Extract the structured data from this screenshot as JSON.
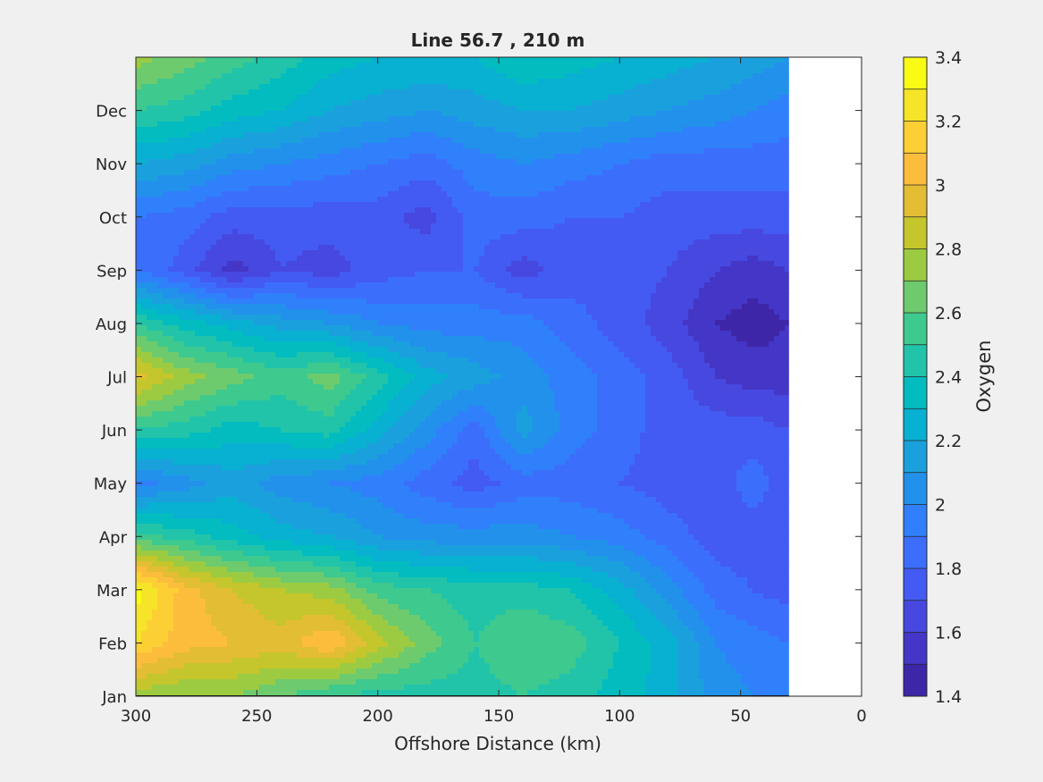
{
  "chart_data": {
    "type": "contourf",
    "title": "Line 56.7 , 210 m",
    "xlabel": "Offshore Distance (km)",
    "ylabel": "",
    "colorbar_label": "Oxygen",
    "x_direction": "reversed",
    "xlim": [
      300,
      0
    ],
    "ylim": [
      "Jan",
      "Dec+"
    ],
    "x_ticks": [
      "300",
      "250",
      "200",
      "150",
      "100",
      "50",
      "0"
    ],
    "y_ticks": [
      "Jan",
      "Feb",
      "Mar",
      "Apr",
      "May",
      "Jun",
      "Jul",
      "Aug",
      "Sep",
      "Oct",
      "Nov",
      "Dec"
    ],
    "data_extent_km": [
      300,
      30
    ],
    "colorbar": {
      "range": [
        1.4,
        3.4
      ],
      "step": 0.1,
      "tick_labels": [
        "1.4",
        "1.6",
        "1.8",
        "2",
        "2.2",
        "2.4",
        "2.6",
        "2.8",
        "3",
        "3.2",
        "3.4"
      ],
      "colors": [
        "#3e26a8",
        "#4436c6",
        "#4748e0",
        "#435bf3",
        "#3c6efc",
        "#2f80fa",
        "#2291eb",
        "#1aa1dd",
        "#08b0d1",
        "#03bcc0",
        "#21c4a9",
        "#3ec98f",
        "#6dcb6e",
        "#9ccb42",
        "#c4c62c",
        "#e3bd33",
        "#fcbd3d",
        "#fcd034",
        "#f5e427",
        "#f9fb15"
      ]
    },
    "series": [
      {
        "months": [
          "Jan",
          "Feb",
          "Mar",
          "Apr",
          "May",
          "Jun",
          "Jul",
          "Aug",
          "Sep",
          "Oct",
          "Nov",
          "Dec",
          "Dec+"
        ],
        "x": 300,
        "values": [
          2.75,
          3.2,
          3.35,
          2.55,
          1.95,
          2.5,
          2.95,
          2.5,
          1.9,
          1.9,
          2.2,
          2.5,
          2.75
        ]
      },
      {
        "months": [
          "Jan",
          "Feb",
          "Mar",
          "Apr",
          "May",
          "Jun",
          "Jul",
          "Aug",
          "Sep",
          "Oct",
          "Nov",
          "Dec",
          "Dec+"
        ],
        "x": 280,
        "values": [
          2.7,
          3.05,
          3.05,
          2.45,
          2.05,
          2.45,
          2.75,
          2.35,
          1.75,
          1.85,
          2.15,
          2.45,
          2.65
        ]
      },
      {
        "months": [
          "Jan",
          "Feb",
          "Mar",
          "Apr",
          "May",
          "Jun",
          "Jul",
          "Aug",
          "Sep",
          "Oct",
          "Nov",
          "Dec",
          "Dec+"
        ],
        "x": 260,
        "values": [
          2.7,
          3.0,
          2.9,
          2.35,
          2.15,
          2.35,
          2.65,
          2.25,
          1.55,
          1.75,
          2.05,
          2.35,
          2.55
        ]
      },
      {
        "months": [
          "Jan",
          "Feb",
          "Mar",
          "Apr",
          "May",
          "Jun",
          "Jul",
          "Aug",
          "Sep",
          "Oct",
          "Nov",
          "Dec",
          "Dec+"
        ],
        "x": 240,
        "values": [
          2.6,
          2.95,
          2.8,
          2.25,
          2.05,
          2.4,
          2.55,
          2.15,
          1.7,
          1.75,
          2.0,
          2.3,
          2.45
        ]
      },
      {
        "months": [
          "Jan",
          "Feb",
          "Mar",
          "Apr",
          "May",
          "Jun",
          "Jul",
          "Aug",
          "Sep",
          "Oct",
          "Nov",
          "Dec",
          "Dec+"
        ],
        "x": 220,
        "values": [
          2.5,
          3.1,
          2.75,
          2.2,
          2.0,
          2.45,
          2.65,
          2.1,
          1.65,
          1.75,
          1.95,
          2.2,
          2.35
        ]
      },
      {
        "months": [
          "Jan",
          "Feb",
          "Mar",
          "Apr",
          "May",
          "Jun",
          "Jul",
          "Aug",
          "Sep",
          "Oct",
          "Nov",
          "Dec",
          "Dec+"
        ],
        "x": 200,
        "values": [
          2.45,
          2.85,
          2.55,
          2.1,
          1.95,
          2.25,
          2.45,
          2.0,
          1.75,
          1.75,
          1.9,
          2.15,
          2.3
        ]
      },
      {
        "months": [
          "Jan",
          "Feb",
          "Mar",
          "Apr",
          "May",
          "Jun",
          "Jul",
          "Aug",
          "Sep",
          "Oct",
          "Nov",
          "Dec",
          "Dec+"
        ],
        "x": 180,
        "values": [
          2.45,
          2.65,
          2.5,
          2.05,
          1.85,
          2.05,
          2.25,
          1.95,
          1.8,
          1.65,
          1.85,
          2.1,
          2.3
        ]
      },
      {
        "months": [
          "Jan",
          "Feb",
          "Mar",
          "Apr",
          "May",
          "Jun",
          "Jul",
          "Aug",
          "Sep",
          "Oct",
          "Nov",
          "Dec",
          "Dec+"
        ],
        "x": 160,
        "values": [
          2.45,
          2.5,
          2.45,
          2.05,
          1.75,
          1.85,
          2.15,
          1.95,
          1.8,
          1.85,
          1.95,
          2.15,
          2.3
        ]
      },
      {
        "months": [
          "Jan",
          "Feb",
          "Mar",
          "Apr",
          "May",
          "Jun",
          "Jul",
          "Aug",
          "Sep",
          "Oct",
          "Nov",
          "Dec",
          "Dec+"
        ],
        "x": 140,
        "values": [
          2.5,
          2.6,
          2.45,
          2.05,
          1.85,
          2.15,
          2.05,
          1.95,
          1.65,
          1.85,
          2.0,
          2.2,
          2.4
        ]
      },
      {
        "months": [
          "Jan",
          "Feb",
          "Mar",
          "Apr",
          "May",
          "Jun",
          "Jul",
          "Aug",
          "Sep",
          "Oct",
          "Nov",
          "Dec",
          "Dec+"
        ],
        "x": 120,
        "values": [
          2.45,
          2.55,
          2.4,
          2.0,
          1.85,
          1.95,
          1.95,
          1.85,
          1.75,
          1.8,
          1.95,
          2.2,
          2.35
        ]
      },
      {
        "months": [
          "Jan",
          "Feb",
          "Mar",
          "Apr",
          "May",
          "Jun",
          "Jul",
          "Aug",
          "Sep",
          "Oct",
          "Nov",
          "Dec",
          "Dec+"
        ],
        "x": 100,
        "values": [
          2.35,
          2.4,
          2.25,
          1.95,
          1.8,
          1.85,
          1.85,
          1.75,
          1.75,
          1.8,
          1.9,
          2.15,
          2.3
        ]
      },
      {
        "months": [
          "Jan",
          "Feb",
          "Mar",
          "Apr",
          "May",
          "Jun",
          "Jul",
          "Aug",
          "Sep",
          "Oct",
          "Nov",
          "Dec",
          "Dec+"
        ],
        "x": 80,
        "values": [
          2.25,
          2.25,
          2.05,
          1.85,
          1.75,
          1.75,
          1.75,
          1.65,
          1.7,
          1.75,
          1.85,
          2.1,
          2.25
        ]
      },
      {
        "months": [
          "Jan",
          "Feb",
          "Mar",
          "Apr",
          "May",
          "Jun",
          "Jul",
          "Aug",
          "Sep",
          "Oct",
          "Nov",
          "Dec",
          "Dec+"
        ],
        "x": 60,
        "values": [
          2.05,
          2.0,
          1.85,
          1.75,
          1.75,
          1.75,
          1.6,
          1.5,
          1.6,
          1.75,
          1.85,
          2.05,
          2.2
        ]
      },
      {
        "months": [
          "Jan",
          "Feb",
          "Mar",
          "Apr",
          "May",
          "Jun",
          "Jul",
          "Aug",
          "Sep",
          "Oct",
          "Nov",
          "Dec",
          "Dec+"
        ],
        "x": 45,
        "values": [
          2.0,
          1.95,
          1.8,
          1.75,
          1.85,
          1.75,
          1.55,
          1.45,
          1.55,
          1.75,
          1.85,
          2.0,
          2.15
        ]
      },
      {
        "months": [
          "Jan",
          "Feb",
          "Mar",
          "Apr",
          "May",
          "Jun",
          "Jul",
          "Aug",
          "Sep",
          "Oct",
          "Nov",
          "Dec",
          "Dec+"
        ],
        "x": 30,
        "values": [
          2.0,
          1.9,
          1.75,
          1.7,
          1.75,
          1.7,
          1.55,
          1.5,
          1.6,
          1.75,
          1.85,
          1.95,
          2.1
        ]
      }
    ]
  }
}
